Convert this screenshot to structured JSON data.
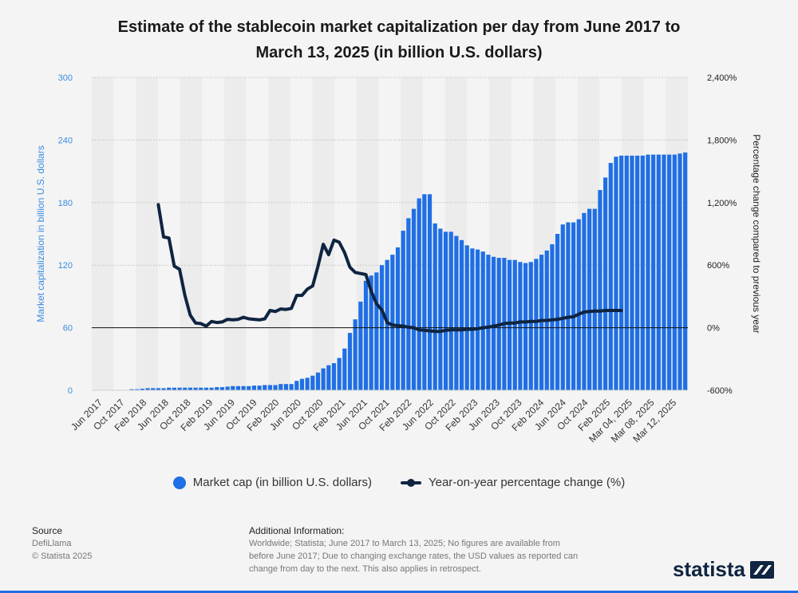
{
  "title_line1": "Estimate of the stablecoin market capitalization per day from June 2017 to",
  "title_line2": "March 13, 2025 (in billion U.S. dollars)",
  "colors": {
    "bar": "#1f6fe5",
    "line": "#0f2440",
    "left_axis": "#3a8de0",
    "background": "#f4f4f4"
  },
  "chart_data": {
    "type": "bar+line",
    "ylabel_left": "Market capitalization in billion U.S. dollars",
    "ylabel_right": "Percentage change compared to previous year",
    "ylim_left": [
      0,
      300
    ],
    "yticks_left": [
      "0",
      "60",
      "120",
      "180",
      "240",
      "300"
    ],
    "ylim_right": [
      -600,
      2400
    ],
    "yticks_right": [
      "-600%",
      "0%",
      "600%",
      "1,200%",
      "1,800%",
      "2,400%"
    ],
    "x_tick_labels": [
      "Jun 2017",
      "Oct 2017",
      "Feb 2018",
      "Jun 2018",
      "Oct 2018",
      "Feb 2019",
      "Jun 2019",
      "Oct 2019",
      "Feb 2020",
      "Jun 2020",
      "Oct 2020",
      "Feb 2021",
      "Jun 2021",
      "Oct 2021",
      "Feb 2022",
      "Jun 2022",
      "Oct 2022",
      "Feb 2023",
      "Jun 2023",
      "Oct 2023",
      "Feb 2024",
      "Jun 2024",
      "Oct 2024",
      "Feb 2025",
      "Mar 04, 2025",
      "Mar 08, 2025",
      "Mar 12, 2025"
    ],
    "grid": true,
    "legend_position": "bottom",
    "series": [
      {
        "name": "Market cap (in billion U.S. dollars)",
        "type": "bar",
        "values": [
          0,
          0,
          0,
          0,
          0,
          0,
          0,
          1,
          1,
          1.5,
          2,
          2,
          2,
          2,
          2.5,
          2.5,
          2.5,
          2.5,
          2.5,
          2.5,
          2.5,
          2.5,
          2.5,
          3,
          3,
          3.5,
          4,
          4,
          4,
          4,
          4.5,
          4.5,
          5,
          5,
          5,
          6,
          6,
          6,
          9,
          11,
          12,
          14,
          17,
          21,
          24,
          26,
          31,
          40,
          55,
          68,
          85,
          105,
          110,
          113,
          120,
          125,
          130,
          137,
          153,
          165,
          174,
          184,
          188,
          188,
          160,
          155,
          152,
          152,
          148,
          144,
          139,
          136,
          135,
          133,
          130,
          128,
          127,
          127,
          125,
          125,
          123,
          122,
          123,
          126,
          130,
          134,
          140,
          150,
          159,
          161,
          161,
          164,
          170,
          174,
          174,
          192,
          204,
          218,
          224,
          225,
          225,
          225,
          225,
          225,
          226,
          226,
          226,
          226,
          226,
          226,
          227,
          228
        ]
      },
      {
        "name": "Year-on-year percentage change (%)",
        "type": "line",
        "x_index": [
          12,
          13,
          14,
          15,
          16,
          17,
          18,
          19,
          20,
          21,
          22,
          23,
          24,
          25,
          26,
          27,
          28,
          29,
          30,
          31,
          32,
          33,
          34,
          35,
          36,
          37,
          38,
          39,
          40,
          41,
          42,
          43,
          44,
          45,
          46,
          47,
          48,
          49,
          50,
          51,
          52,
          53,
          54,
          55,
          56,
          57,
          58,
          59,
          60,
          61,
          62,
          63,
          64,
          65,
          66,
          67,
          68,
          69,
          70,
          71,
          72,
          73,
          74,
          75,
          76,
          77,
          78,
          79,
          80,
          81,
          82,
          83,
          84,
          85,
          86,
          87,
          88,
          89,
          90,
          91,
          92,
          93,
          94,
          95,
          96,
          97,
          98,
          99
        ],
        "values": [
          1180,
          870,
          860,
          590,
          560,
          310,
          120,
          45,
          40,
          15,
          60,
          50,
          55,
          80,
          75,
          80,
          100,
          85,
          80,
          75,
          85,
          165,
          155,
          180,
          175,
          185,
          310,
          310,
          370,
          400,
          590,
          800,
          700,
          840,
          820,
          720,
          580,
          530,
          520,
          510,
          350,
          230,
          170,
          50,
          25,
          20,
          15,
          5,
          0,
          -20,
          -25,
          -30,
          -35,
          -35,
          -25,
          -20,
          -20,
          -20,
          -15,
          -15,
          -10,
          0,
          5,
          15,
          25,
          40,
          45,
          45,
          55,
          55,
          60,
          60,
          70,
          70,
          75,
          80,
          90,
          100,
          105,
          130,
          150,
          155,
          160,
          160,
          165,
          165,
          165,
          165
        ]
      }
    ]
  },
  "legend": {
    "bar_label": "Market cap (in billion U.S. dollars)",
    "line_label": "Year-on-year percentage change (%)"
  },
  "footer": {
    "source_head": "Source",
    "source_line1": "DefiLlama",
    "source_line2": "© Statista 2025",
    "info_head": "Additional Information:",
    "info_text": "Worldwide; Statista; June 2017 to March 13, 2025; No figures are available from before June 2017; Due to changing exchange rates, the USD values as reported can change from day to the next. This also applies in retrospect."
  },
  "brand": "statista"
}
